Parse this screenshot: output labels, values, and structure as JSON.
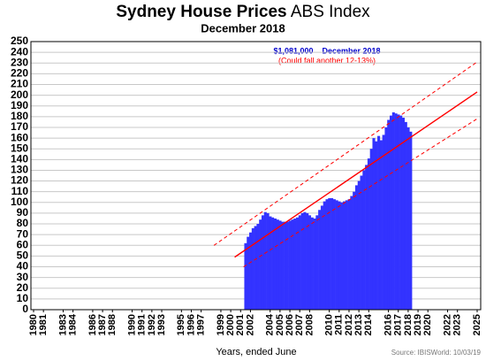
{
  "chart_data": {
    "type": "bar",
    "title": [
      "Sydney House Prices",
      "ABS Index"
    ],
    "subtitle": "December 2018",
    "annotations": [
      "$1,081,000    December 2018",
      "(Could fall another 12-13%)"
    ],
    "x_label": "Years, ended June",
    "source": "Source: IBISWorld: 10/03/19",
    "xlim": [
      1980,
      2025
    ],
    "xticks": [
      1980,
      1981,
      1983,
      1984,
      1986,
      1987,
      1988,
      1990,
      1991,
      1992,
      1993,
      1995,
      1996,
      1997,
      1999,
      2000,
      2001,
      2002,
      2004,
      2005,
      2006,
      2007,
      2008,
      2010,
      2011,
      2012,
      2013,
      2014,
      2016,
      2017,
      2018,
      2019,
      2020,
      2022,
      2023,
      2025
    ],
    "ylim": [
      0,
      250
    ],
    "yticks": [
      0,
      10,
      20,
      30,
      40,
      50,
      60,
      70,
      80,
      90,
      100,
      110,
      120,
      130,
      140,
      150,
      160,
      170,
      180,
      190,
      200,
      210,
      220,
      230,
      240,
      250
    ],
    "grid": true,
    "x": [
      2001.5,
      2001.75,
      2002,
      2002.25,
      2002.5,
      2002.75,
      2003,
      2003.25,
      2003.5,
      2003.75,
      2004,
      2004.25,
      2004.5,
      2004.75,
      2005,
      2005.25,
      2005.5,
      2005.75,
      2006,
      2006.25,
      2006.5,
      2006.75,
      2007,
      2007.25,
      2007.5,
      2007.75,
      2008,
      2008.25,
      2008.5,
      2008.75,
      2009,
      2009.25,
      2009.5,
      2009.75,
      2010,
      2010.25,
      2010.5,
      2010.75,
      2011,
      2011.25,
      2011.5,
      2011.75,
      2012,
      2012.25,
      2012.5,
      2012.75,
      2013,
      2013.25,
      2013.5,
      2013.75,
      2014,
      2014.25,
      2014.5,
      2014.75,
      2015,
      2015.25,
      2015.5,
      2015.75,
      2016,
      2016.25,
      2016.5,
      2016.75,
      2017,
      2017.25,
      2017.5,
      2017.75,
      2018,
      2018.25
    ],
    "series": [
      {
        "color": "#3333ff",
        "values": [
          62,
          68,
          72,
          76,
          78,
          80,
          84,
          88,
          91,
          90,
          87,
          86,
          85,
          84,
          83,
          82,
          82,
          82,
          83,
          84,
          85,
          86,
          88,
          90,
          91,
          90,
          88,
          86,
          85,
          88,
          93,
          97,
          101,
          103,
          104,
          104,
          103,
          102,
          101,
          100,
          101,
          102,
          103,
          106,
          110,
          116,
          120,
          125,
          130,
          135,
          141,
          150,
          160,
          157,
          162,
          158,
          163,
          170,
          177,
          181,
          184,
          183,
          182,
          181,
          179,
          175,
          170,
          166
        ]
      }
    ],
    "trend_lines": [
      {
        "color": "#ff0000",
        "dashed": false,
        "x": [
          2000.4,
          2025
        ],
        "y": [
          49,
          203
        ]
      },
      {
        "color": "#ff0000",
        "dashed": true,
        "x": [
          1998.3,
          2025
        ],
        "y": [
          60,
          231
        ]
      },
      {
        "color": "#ff0000",
        "dashed": true,
        "x": [
          2001.3,
          2025
        ],
        "y": [
          40,
          178
        ]
      }
    ]
  }
}
